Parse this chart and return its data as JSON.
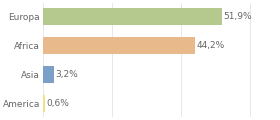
{
  "categories": [
    "America",
    "Asia",
    "Africa",
    "Europa"
  ],
  "values": [
    0.6,
    3.2,
    44.2,
    51.9
  ],
  "labels": [
    "0,6%",
    "3,2%",
    "44,2%",
    "51,9%"
  ],
  "bar_colors": [
    "#f0e08a",
    "#7b9fc7",
    "#e8b98a",
    "#b5c98e"
  ],
  "xlim": [
    0,
    68
  ],
  "background_color": "#ffffff",
  "text_color": "#666666",
  "label_fontsize": 6.5,
  "tick_fontsize": 6.5,
  "bar_height": 0.6,
  "grid_color": "#dddddd",
  "figsize": [
    2.8,
    1.2
  ],
  "dpi": 100
}
